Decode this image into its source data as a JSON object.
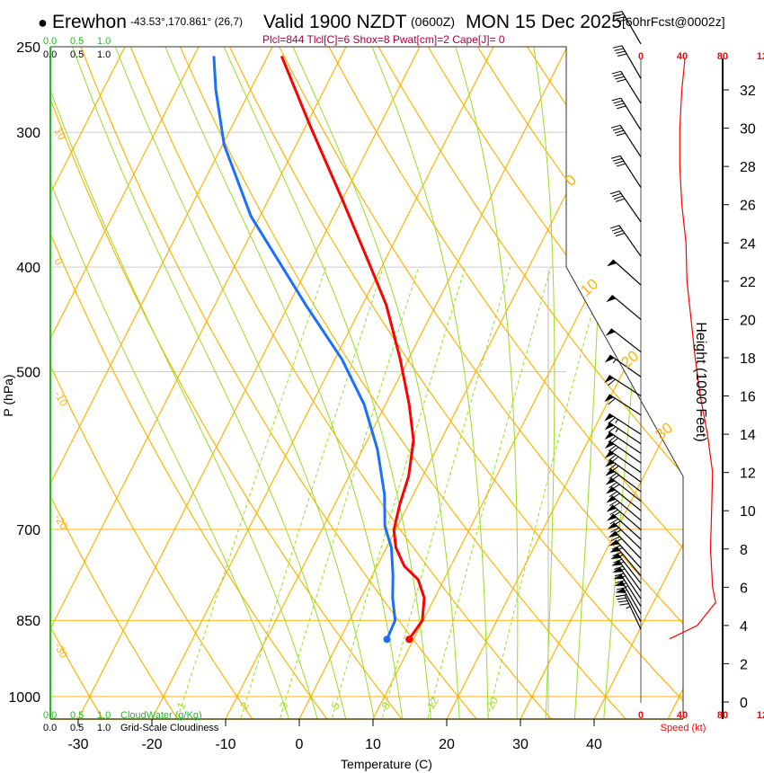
{
  "header": {
    "bullet": "●",
    "station": "Erewhon",
    "coords": "-43.53°,170.861° (26,7)",
    "valid": "Valid 1900 NZDT",
    "utc": "(0600Z)",
    "date": "MON 15 Dec 2025",
    "forecast": "[60hrFcst@0002z]",
    "indices": "Plcl=844 Tlcl[C]=6 Shox=8 Pwat[cm]=2 Cape[J]= 0"
  },
  "colors": {
    "temperature": "#ff0000",
    "dewpoint": "#1a6fff",
    "isotherm": "#ffb300",
    "moist_adiabat": "#99dd22",
    "mixing_ratio": "#99dd22",
    "cloud": "#22bb22",
    "speed": "#ff0000",
    "indices": "#aa0044"
  },
  "cloud_axis": {
    "top_green": [
      "0.0",
      "0.5",
      "1.0"
    ],
    "top_black": [
      "0.0",
      "0.5",
      "1.0"
    ],
    "bottom_green": [
      "0.0",
      "0.5",
      "1.0"
    ],
    "bottom_black": [
      "0.0",
      "0.5",
      "1.0"
    ],
    "cloudwater_label": "CloudWater (g/Kg)",
    "cloudiness_label": "Grid-Scale Cloudiness"
  },
  "chart_data": {
    "type": "line",
    "subtype": "skew-T log-P",
    "xlabel": "Temperature (C)",
    "ylabel": "P (hPa)",
    "y2label": "Height (1000 Feet)",
    "speed_label": "Speed (kt)",
    "pressure_ticks": [
      250,
      300,
      400,
      500,
      700,
      850,
      1000
    ],
    "temperature_ticks": [
      -30,
      -20,
      -10,
      0,
      10,
      20,
      30,
      40
    ],
    "height_ticks": [
      0,
      2,
      4,
      6,
      8,
      10,
      12,
      14,
      16,
      18,
      20,
      22,
      24,
      26,
      28,
      30,
      32
    ],
    "speed_ticks": [
      "0",
      "40",
      "80",
      "12"
    ],
    "theta_labels": [
      "10",
      "0",
      "-10",
      "-20",
      "-30"
    ],
    "isotherm_labels": [
      "0",
      "10",
      "20",
      "30"
    ],
    "mixing_ratio_labels": [
      "1",
      "2",
      "3",
      "5",
      "8",
      "12",
      "20"
    ],
    "ylim_hpa": [
      1050,
      250
    ],
    "series": [
      {
        "name": "Temperature",
        "points": [
          [
            885,
            9.4
          ],
          [
            850,
            9.9
          ],
          [
            810,
            8.6
          ],
          [
            779,
            6.5
          ],
          [
            757,
            3.7
          ],
          [
            728,
            1.3
          ],
          [
            701,
            -0.2
          ],
          [
            662,
            -1.2
          ],
          [
            625,
            -1.9
          ],
          [
            579,
            -3.7
          ],
          [
            536,
            -6.8
          ],
          [
            487,
            -11.1
          ],
          [
            434,
            -16.7
          ],
          [
            395,
            -22.2
          ],
          [
            345,
            -30.2
          ],
          [
            296,
            -39.4
          ],
          [
            255,
            -48.1
          ]
        ]
      },
      {
        "name": "Dewpoint",
        "points": [
          [
            885,
            6.4
          ],
          [
            850,
            6.2
          ],
          [
            810,
            4.3
          ],
          [
            772,
            2.8
          ],
          [
            728,
            0.7
          ],
          [
            695,
            -1.7
          ],
          [
            650,
            -3.9
          ],
          [
            590,
            -8.0
          ],
          [
            536,
            -12.9
          ],
          [
            487,
            -19.0
          ],
          [
            434,
            -27.6
          ],
          [
            359,
            -41.2
          ],
          [
            308,
            -49.8
          ],
          [
            274,
            -54.7
          ],
          [
            255,
            -57.3
          ]
        ]
      }
    ],
    "wind_speed_profile": [
      [
        3.3,
        28
      ],
      [
        4.0,
        55
      ],
      [
        5.2,
        73
      ],
      [
        6,
        70
      ],
      [
        8,
        68
      ],
      [
        10,
        69
      ],
      [
        12,
        70
      ],
      [
        14,
        65
      ],
      [
        16,
        58
      ],
      [
        18,
        53
      ],
      [
        20,
        49
      ],
      [
        22,
        45
      ],
      [
        24,
        44
      ],
      [
        26,
        40
      ],
      [
        28,
        38
      ],
      [
        30,
        38
      ],
      [
        32,
        40
      ],
      [
        33.6,
        43
      ]
    ],
    "wind_barbs": [
      {
        "h": 3.8,
        "dir": 335,
        "spd": 45
      },
      {
        "h": 4.2,
        "dir": 332,
        "spd": 60
      },
      {
        "h": 4.6,
        "dir": 330,
        "spd": 70
      },
      {
        "h": 5.0,
        "dir": 328,
        "spd": 73
      },
      {
        "h": 5.4,
        "dir": 326,
        "spd": 72
      },
      {
        "h": 5.8,
        "dir": 324,
        "spd": 70
      },
      {
        "h": 6.2,
        "dir": 322,
        "spd": 70
      },
      {
        "h": 6.6,
        "dir": 320,
        "spd": 69
      },
      {
        "h": 7.0,
        "dir": 318,
        "spd": 69
      },
      {
        "h": 7.5,
        "dir": 316,
        "spd": 68
      },
      {
        "h": 8.0,
        "dir": 314,
        "spd": 68
      },
      {
        "h": 8.5,
        "dir": 312,
        "spd": 68
      },
      {
        "h": 9.0,
        "dir": 311,
        "spd": 69
      },
      {
        "h": 9.5,
        "dir": 310,
        "spd": 69
      },
      {
        "h": 10.0,
        "dir": 309,
        "spd": 69
      },
      {
        "h": 10.5,
        "dir": 308,
        "spd": 70
      },
      {
        "h": 11.0,
        "dir": 307,
        "spd": 70
      },
      {
        "h": 11.5,
        "dir": 306,
        "spd": 70
      },
      {
        "h": 12.0,
        "dir": 305,
        "spd": 70
      },
      {
        "h": 12.5,
        "dir": 305,
        "spd": 69
      },
      {
        "h": 13.0,
        "dir": 304,
        "spd": 68
      },
      {
        "h": 13.5,
        "dir": 304,
        "spd": 67
      },
      {
        "h": 14.0,
        "dir": 303,
        "spd": 65
      },
      {
        "h": 15.0,
        "dir": 303,
        "spd": 62
      },
      {
        "h": 16.0,
        "dir": 303,
        "spd": 58
      },
      {
        "h": 17.0,
        "dir": 305,
        "spd": 55
      },
      {
        "h": 18.3,
        "dir": 308,
        "spd": 52
      },
      {
        "h": 20.0,
        "dir": 310,
        "spd": 50
      },
      {
        "h": 21.8,
        "dir": 312,
        "spd": 50
      },
      {
        "h": 23.3,
        "dir": 325,
        "spd": 40
      },
      {
        "h": 25.1,
        "dir": 325,
        "spd": 40
      },
      {
        "h": 26.9,
        "dir": 327,
        "spd": 40
      },
      {
        "h": 28.5,
        "dir": 327,
        "spd": 40
      },
      {
        "h": 29.9,
        "dir": 328,
        "spd": 40
      },
      {
        "h": 31.3,
        "dir": 328,
        "spd": 40
      },
      {
        "h": 32.6,
        "dir": 330,
        "spd": 40
      },
      {
        "h": 34.4,
        "dir": 330,
        "spd": 40
      }
    ]
  }
}
